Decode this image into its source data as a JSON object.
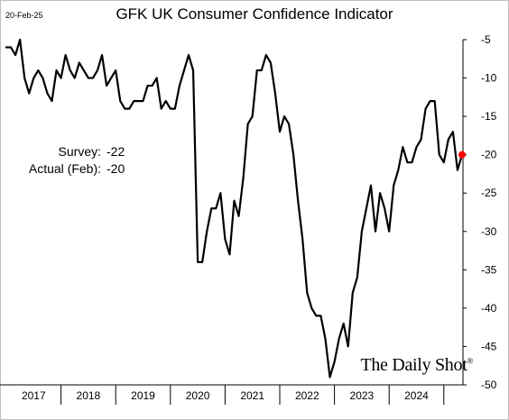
{
  "header": {
    "date": "20-Feb-25",
    "title": "GFK UK Consumer Confidence Indicator"
  },
  "annotation": {
    "survey_label": "Survey:",
    "survey_value": "-22",
    "actual_label": "Actual (Feb):",
    "actual_value": "-20"
  },
  "watermark": {
    "text": "The Daily Shot",
    "mark": "®"
  },
  "colors": {
    "line": "#000000",
    "highlight": "#ff0000"
  },
  "chart_data": {
    "type": "line",
    "title": "GFK UK Consumer Confidence Indicator",
    "xlabel": "",
    "ylabel": "",
    "y_axis_position": "right",
    "ylim": [
      -50,
      -5
    ],
    "yticks": [
      -5,
      -10,
      -15,
      -20,
      -25,
      -30,
      -35,
      -40,
      -45,
      -50
    ],
    "x_categories": [
      "2017",
      "2018",
      "2019",
      "2020",
      "2021",
      "2022",
      "2023",
      "2024"
    ],
    "grid": false,
    "series": [
      {
        "name": "",
        "start": "2017-01",
        "frequency": "monthly",
        "values": [
          -6,
          -6,
          -7,
          -5,
          -10,
          -12,
          -10,
          -9,
          -10,
          -12,
          -13,
          -9,
          -10,
          -7,
          -9,
          -10,
          -8,
          -9,
          -10,
          -10,
          -9,
          -7,
          -11,
          -10,
          -9,
          -13,
          -14,
          -14,
          -13,
          -13,
          -13,
          -11,
          -11,
          -10,
          -14,
          -13,
          -14,
          -14,
          -11,
          -9,
          -7,
          -9,
          -34,
          -34,
          -30,
          -27,
          -27,
          -25,
          -31,
          -33,
          -26,
          -28,
          -23,
          -16,
          -15,
          -9,
          -9,
          -7,
          -8,
          -12,
          -17,
          -15,
          -16,
          -20,
          -26,
          -31,
          -38,
          -40,
          -41,
          -41,
          -44,
          -49,
          -47,
          -44,
          -42,
          -45,
          -38,
          -36,
          -30,
          -27,
          -24,
          -30,
          -25,
          -27,
          -30,
          -24,
          -22,
          -19,
          -21,
          -21,
          -19,
          -18,
          -14,
          -13,
          -13,
          -20,
          -21,
          -18,
          -17,
          -22,
          -20
        ]
      }
    ],
    "highlight_point": {
      "x": "2025-02",
      "y": -20
    }
  }
}
